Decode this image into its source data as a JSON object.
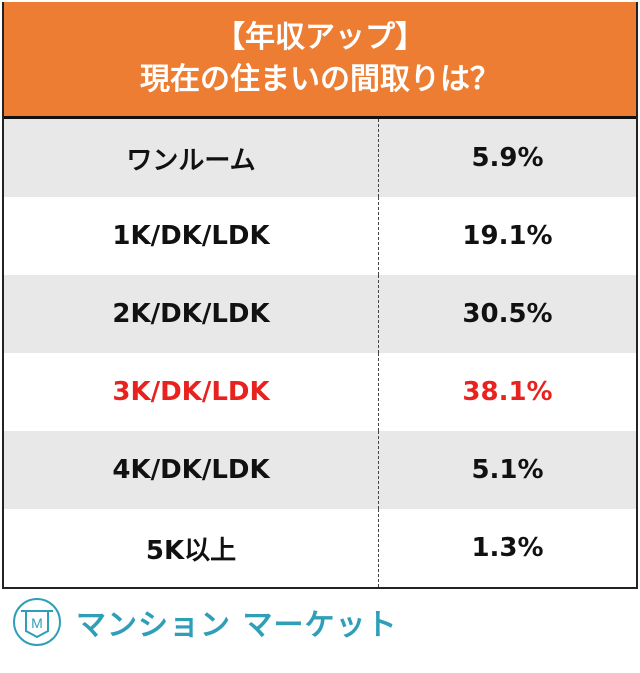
{
  "chart_data": {
    "type": "table",
    "title_line1": "【年収アップ】",
    "title_line2": "現在の住まいの間取りは？",
    "rows": [
      {
        "label": "ワンルーム",
        "value": "5.9%",
        "highlight": false
      },
      {
        "label": "1K/DK/LDK",
        "value": "19.1%",
        "highlight": false
      },
      {
        "label": "2K/DK/LDK",
        "value": "30.5%",
        "highlight": false
      },
      {
        "label": "3K/DK/LDK",
        "value": "38.1%",
        "highlight": true
      },
      {
        "label": "4K/DK/LDK",
        "value": "5.1%",
        "highlight": false
      },
      {
        "label": "5K以上",
        "value": "1.3%",
        "highlight": false
      }
    ]
  },
  "colors": {
    "header": "#ec7d32",
    "highlight": "#e8231f",
    "brand": "#2f9fb8"
  },
  "brand": {
    "name": "マンション マーケット",
    "logo_letter": "M"
  }
}
